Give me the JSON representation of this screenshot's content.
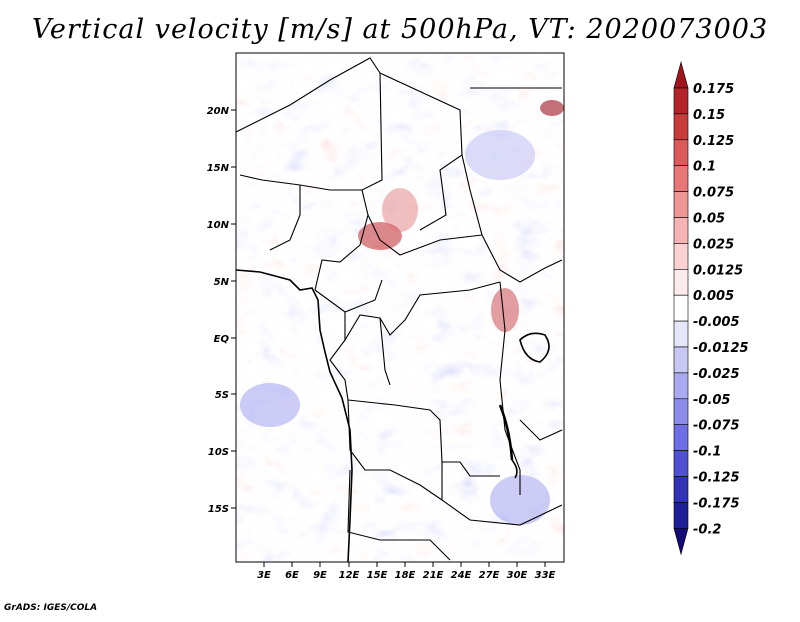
{
  "title": "Vertical velocity [m/s] at 500hPa, VT: 2020073003",
  "credit": "GrADS: IGES/COLA",
  "map": {
    "lat_labels": [
      "20N",
      "15N",
      "10N",
      "5N",
      "EQ",
      "5S",
      "10S",
      "15S"
    ],
    "lon_labels": [
      "3E",
      "6E",
      "9E",
      "12E",
      "15E",
      "18E",
      "21E",
      "24E",
      "27E",
      "30E",
      "33E"
    ],
    "lat_range": [
      -20,
      25
    ],
    "lon_range": [
      0,
      35
    ]
  },
  "colorbar": {
    "labels": [
      "0.175",
      "0.15",
      "0.125",
      "0.1",
      "0.075",
      "0.05",
      "0.025",
      "0.0125",
      "0.005",
      "-0.005",
      "-0.0125",
      "-0.025",
      "-0.05",
      "-0.075",
      "-0.1",
      "-0.125",
      "-0.175",
      "-0.2"
    ],
    "colors": [
      "#a0141e",
      "#b4232a",
      "#c83c3c",
      "#dc5a5a",
      "#e87878",
      "#f09696",
      "#f6b4b4",
      "#fad2d2",
      "#fdeaea",
      "#ffffff",
      "#e6e6fa",
      "#c8c8f5",
      "#aaaaf0",
      "#8c8ceb",
      "#6e6ee6",
      "#5050d2",
      "#3232b4",
      "#1e1e96",
      "#140a78"
    ]
  }
}
